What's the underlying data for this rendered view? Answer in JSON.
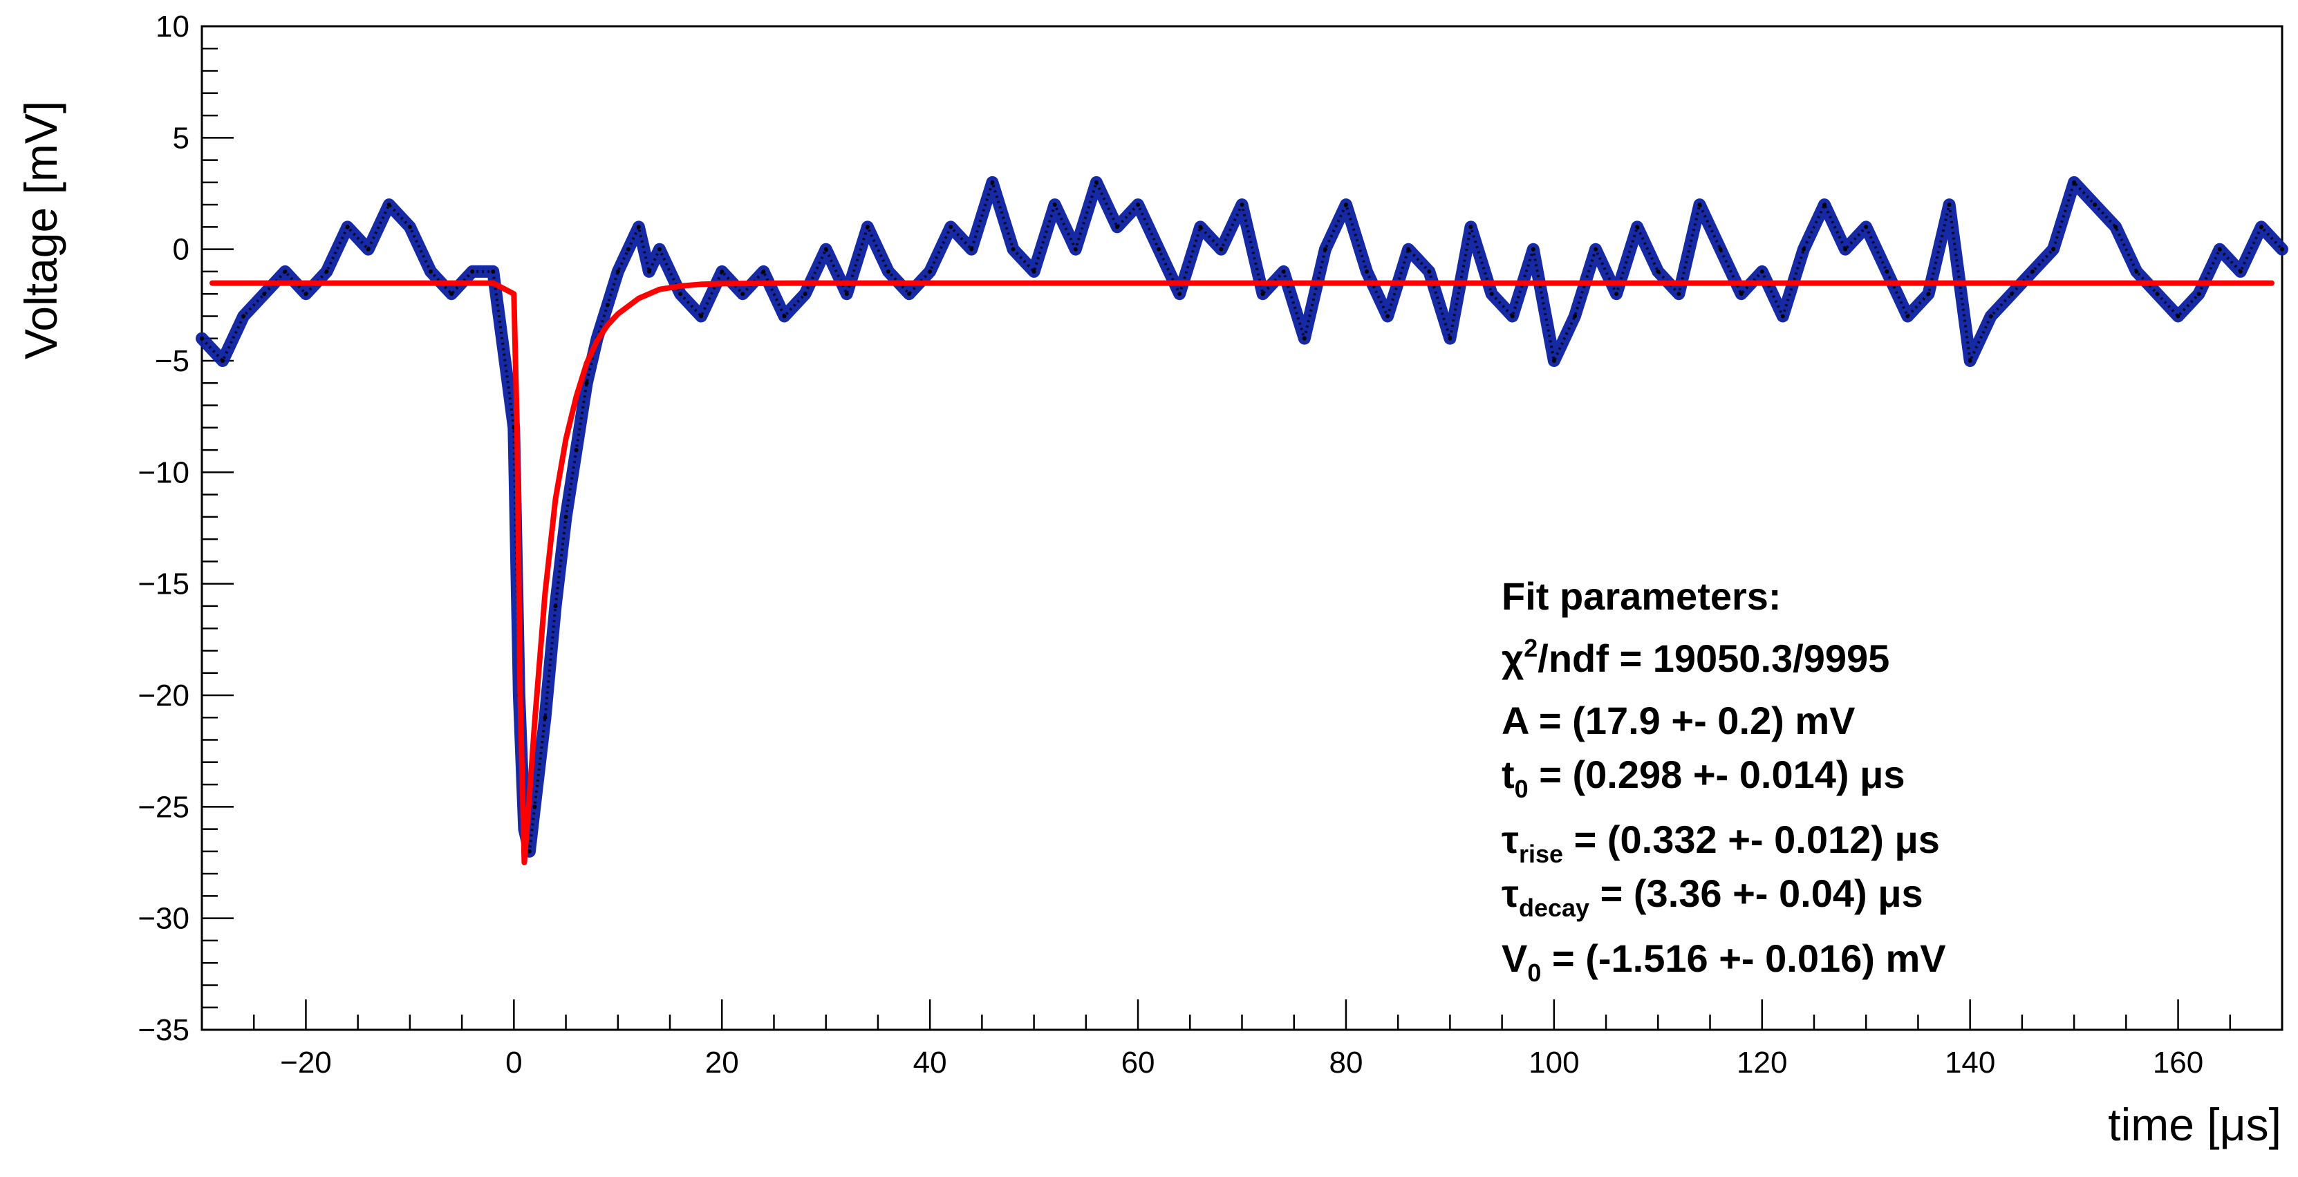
{
  "chart_data": {
    "type": "line",
    "xlabel": "time [μs]",
    "ylabel": "Voltage [mV]",
    "xlim": [
      -30,
      170
    ],
    "ylim": [
      -35,
      10
    ],
    "x_ticks": [
      -20,
      0,
      20,
      40,
      60,
      80,
      100,
      120,
      140,
      160
    ],
    "y_ticks": [
      10,
      5,
      0,
      -5,
      -10,
      -15,
      -20,
      -25,
      -30,
      -35
    ],
    "y_tick_labels": [
      "10",
      "5",
      "0",
      "−5",
      "−10",
      "−15",
      "−20",
      "−25",
      "−30",
      "−35"
    ],
    "x_tick_labels": [
      "−20",
      "0",
      "20",
      "40",
      "60",
      "80",
      "100",
      "120",
      "140",
      "160"
    ],
    "grid": false,
    "series": [
      {
        "style": "noisy-data",
        "color": "#0b1fa0",
        "x": [
          -30,
          -28,
          -26,
          -24,
          -22,
          -20,
          -18,
          -16,
          -14,
          -12,
          -10,
          -8,
          -6,
          -4,
          -2,
          0,
          0.5,
          1,
          1.5,
          2,
          3,
          4,
          5,
          6,
          7,
          8,
          9,
          10,
          11,
          12,
          13,
          14,
          16,
          18,
          20,
          22,
          24,
          26,
          28,
          30,
          32,
          34,
          36,
          38,
          40,
          42,
          44,
          46,
          48,
          50,
          52,
          54,
          56,
          58,
          60,
          62,
          64,
          66,
          68,
          70,
          72,
          74,
          76,
          78,
          80,
          82,
          84,
          86,
          88,
          90,
          92,
          94,
          96,
          98,
          100,
          102,
          104,
          106,
          108,
          110,
          112,
          114,
          116,
          118,
          120,
          122,
          124,
          126,
          128,
          130,
          132,
          134,
          136,
          138,
          140,
          142,
          144,
          146,
          148,
          150,
          152,
          154,
          156,
          158,
          160,
          162,
          164,
          166,
          168,
          170
        ],
        "y": [
          -4,
          -5,
          -3,
          -2,
          -1,
          -2,
          -1,
          1,
          0,
          2,
          1,
          -1,
          -2,
          -1,
          -1,
          -8,
          -20,
          -26,
          -27,
          -25,
          -21,
          -16,
          -12,
          -9,
          -6,
          -4,
          -2.5,
          -1,
          0,
          1,
          -1,
          0,
          -2,
          -3,
          -1,
          -2,
          -1,
          -3,
          -2,
          0,
          -2,
          1,
          -1,
          -2,
          -1,
          1,
          0,
          3,
          0,
          -1,
          2,
          0,
          3,
          1,
          2,
          0,
          -2,
          1,
          0,
          2,
          -2,
          -1,
          -4,
          0,
          2,
          -1,
          -3,
          0,
          -1,
          -4,
          1,
          -2,
          -3,
          0,
          -5,
          -3,
          0,
          -2,
          1,
          -1,
          -2,
          2,
          0,
          -2,
          -1,
          -3,
          0,
          2,
          0,
          1,
          -1,
          -3,
          -2,
          2,
          -5,
          -3,
          -2,
          -1,
          0,
          3,
          2,
          1,
          -1,
          -2,
          -3,
          -2,
          0,
          -1,
          1,
          0
        ]
      },
      {
        "style": "fit",
        "color": "#ff0000",
        "x": [
          -29,
          -2,
          0,
          0.3,
          0.6,
          1,
          1.5,
          2,
          3,
          4,
          5,
          6,
          7,
          8,
          9,
          10,
          12,
          14,
          16,
          18,
          20,
          25,
          30,
          40,
          60,
          100,
          140,
          169
        ],
        "y": [
          -1.516,
          -1.516,
          -2.0,
          -8.0,
          -20.0,
          -27.5,
          -24.5,
          -21.2,
          -15.4,
          -11.2,
          -8.5,
          -6.6,
          -5.1,
          -4.1,
          -3.4,
          -2.9,
          -2.2,
          -1.8,
          -1.65,
          -1.57,
          -1.54,
          -1.52,
          -1.516,
          -1.516,
          -1.516,
          -1.516,
          -1.516,
          -1.516
        ]
      }
    ]
  },
  "fit_box": {
    "title": "Fit parameters:",
    "chi2_symbol": "χ",
    "chi2_sup": "2",
    "chi2_rest": "/ndf = 19050.3/9995",
    "A_line": "A = (17.9 +- 0.2) mV",
    "t0_base": "t",
    "t0_sub": "0",
    "t0_rest": " = (0.298 +- 0.014) μs",
    "tau_rise_base": "τ",
    "tau_rise_sub": "rise",
    "tau_rise_rest": " = (0.332 +- 0.012) μs",
    "tau_decay_base": "τ",
    "tau_decay_sub": "decay",
    "tau_decay_rest": " = (3.36 +- 0.04) μs",
    "V0_base": "V",
    "V0_sub": "0",
    "V0_rest": " = (-1.516 +- 0.016) mV"
  }
}
